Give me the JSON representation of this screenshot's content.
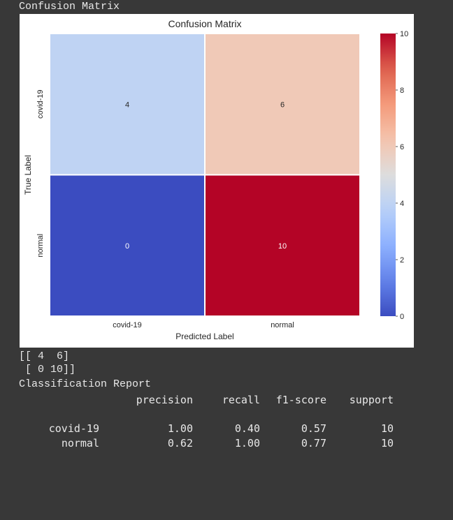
{
  "output_header": "Confusion Matrix",
  "matrix_text": [
    "[[ 4  6]",
    " [ 0 10]]"
  ],
  "report": {
    "title": "Classification Report",
    "headers": [
      "precision",
      "recall",
      "f1-score",
      "support"
    ],
    "rows": [
      {
        "label": "covid-19",
        "values": [
          "1.00",
          "0.40",
          "0.57",
          "10"
        ]
      },
      {
        "label": "normal",
        "values": [
          "0.62",
          "1.00",
          "0.77",
          "10"
        ]
      }
    ]
  },
  "chart_data": {
    "type": "heatmap",
    "title": "Confusion Matrix",
    "xlabel": "Predicted Label",
    "ylabel": "True Label",
    "x_categories": [
      "covid-19",
      "normal"
    ],
    "y_categories": [
      "covid-19",
      "normal"
    ],
    "values": [
      [
        4,
        6
      ],
      [
        0,
        10
      ]
    ],
    "colormap": "coolwarm",
    "vmin": 0,
    "vmax": 10,
    "colorbar_ticks": [
      0,
      2,
      4,
      6,
      8,
      10
    ],
    "colors": [
      "#b9d0f9",
      "#f2c9b4",
      "#3b4cc0",
      "#b40426"
    ]
  }
}
